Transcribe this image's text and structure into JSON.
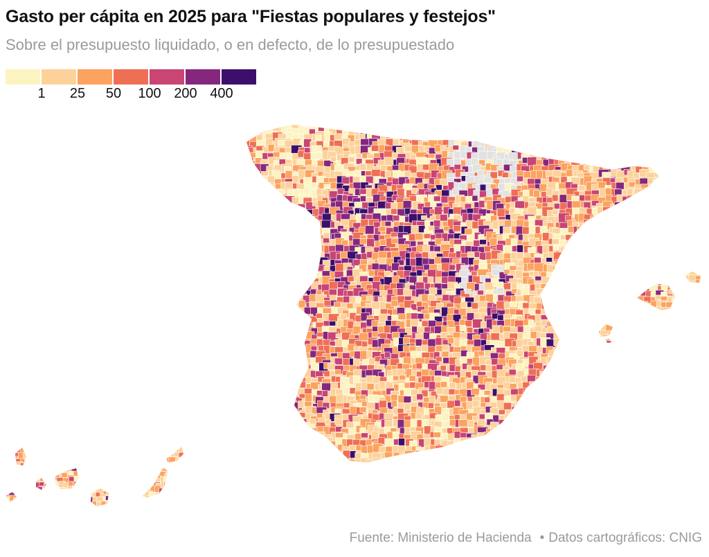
{
  "title": "Gasto per cápita en 2025 para \"Fiestas populares y festejos\"",
  "subtitle": "Sobre el presupuesto liquidado, o en defecto, de lo presupuestado",
  "legend": {
    "colors": [
      "#fcf4c0",
      "#fdd29a",
      "#fba35f",
      "#ef6f55",
      "#c84574",
      "#86277e",
      "#3c0f6b"
    ],
    "labels": [
      "1",
      "25",
      "50",
      "100",
      "200",
      "400"
    ]
  },
  "footer": {
    "source": "Fuente: Ministerio de Hacienda",
    "separator": "•",
    "cartography": "Datos cartográficos: CNIG"
  },
  "map": {
    "no_data_color": "#e2e2e2",
    "regions": [
      "peninsula",
      "islas-baleares",
      "islas-canarias"
    ]
  }
}
